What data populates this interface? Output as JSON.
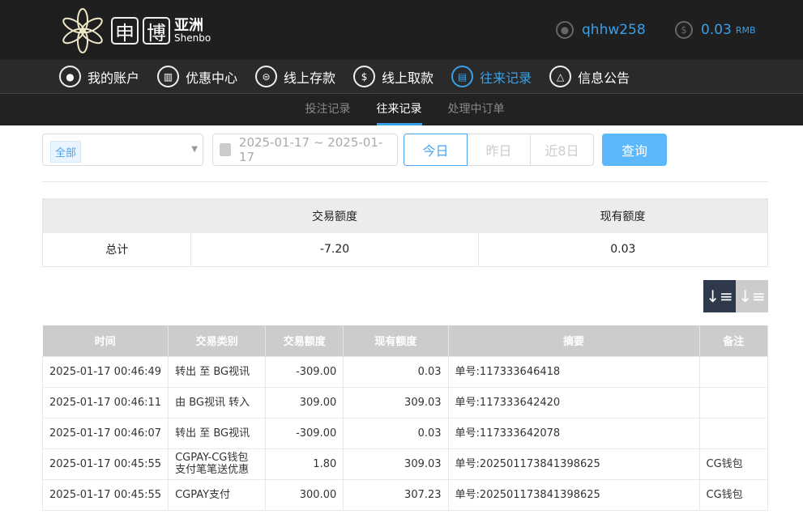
{
  "brand": {
    "box1": "申",
    "box2": "博",
    "name": "亚洲",
    "sub": "Shenbo"
  },
  "user": {
    "name": "qhhw258",
    "balance": "0.03",
    "currency": "RMB"
  },
  "nav": [
    {
      "label": "我的账户",
      "icon": "user-icon"
    },
    {
      "label": "优惠中心",
      "icon": "gift-icon"
    },
    {
      "label": "线上存款",
      "icon": "deposit-icon"
    },
    {
      "label": "线上取款",
      "icon": "withdraw-icon"
    },
    {
      "label": "往来记录",
      "icon": "record-icon",
      "active": true
    },
    {
      "label": "信息公告",
      "icon": "bell-icon"
    }
  ],
  "subnav": [
    "投注记录",
    "往来记录",
    "处理中订单"
  ],
  "filters": {
    "type": "全部",
    "date_range": "2025-01-17 ~ 2025-01-17",
    "quick": [
      "今日",
      "昨日",
      "近8日"
    ],
    "search": "查询"
  },
  "summary": {
    "headers": [
      "",
      "交易额度",
      "现有额度"
    ],
    "row": [
      "总计",
      "-7.20",
      "0.03"
    ]
  },
  "table": {
    "headers": [
      "时间",
      "交易类别",
      "交易额度",
      "现有额度",
      "摘要",
      "备注"
    ],
    "rows": [
      [
        "2025-01-17 00:46:49",
        "转出 至 BG视讯",
        "-309.00",
        "0.03",
        "单号:117333646418",
        ""
      ],
      [
        "2025-01-17 00:46:11",
        "由 BG视讯 转入",
        "309.00",
        "309.03",
        "单号:117333642420",
        ""
      ],
      [
        "2025-01-17 00:46:07",
        "转出 至 BG视讯",
        "-309.00",
        "0.03",
        "单号:117333642078",
        ""
      ],
      [
        "2025-01-17 00:45:55",
        "CGPAY-CG钱包支付笔笔送优惠",
        "1.80",
        "309.03",
        "单号:202501173841398625",
        "CG钱包"
      ],
      [
        "2025-01-17 00:45:55",
        "CGPAY支付",
        "300.00",
        "307.23",
        "单号:202501173841398625",
        "CG钱包"
      ]
    ]
  },
  "colors": {
    "accent": "#3aa0e8",
    "button": "#5bb8fb",
    "header": "#1f1f1f"
  }
}
